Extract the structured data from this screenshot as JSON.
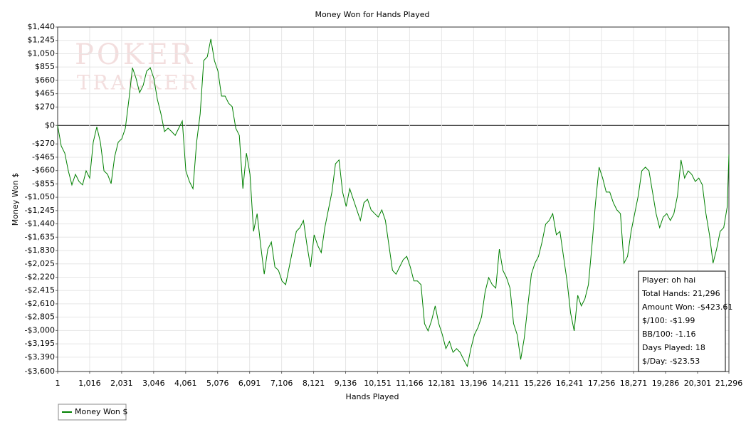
{
  "chart_data": {
    "type": "line",
    "title": "Money Won for Hands Played",
    "xlabel": "Hands Played",
    "ylabel": "Money Won $",
    "watermark": [
      "POKER",
      "TRACKER"
    ],
    "annotations": [
      "Player: oh hai",
      "Total Hands: 21,296",
      "Amount Won: -$423.61",
      "$/100: -$1.99",
      "BB/100: -1.16",
      "Days Played: 18",
      "$/Day: -$23.53"
    ],
    "grid": true,
    "zero_line": true,
    "legend": "bottom-left",
    "xlim": [
      1,
      21296
    ],
    "ylim": [
      -3600,
      1440
    ],
    "xticks": [
      1,
      {
        "value": 1016,
        "label": "1,016"
      },
      {
        "value": 2031,
        "label": "2,031"
      },
      {
        "value": 3046,
        "label": "3,046"
      },
      {
        "value": 4061,
        "label": "4,061"
      },
      {
        "value": 5076,
        "label": "5,076"
      },
      {
        "value": 6091,
        "label": "6,091"
      },
      {
        "value": 7106,
        "label": "7,106"
      },
      {
        "value": 8121,
        "label": "8,121"
      },
      {
        "value": 9136,
        "label": "9,136"
      },
      {
        "value": 10151,
        "label": "10,151"
      },
      {
        "value": 11166,
        "label": "11,166"
      },
      {
        "value": 12181,
        "label": "12,181"
      },
      {
        "value": 13196,
        "label": "13,196"
      },
      {
        "value": 14211,
        "label": "14,211"
      },
      {
        "value": 15226,
        "label": "15,226"
      },
      {
        "value": 16241,
        "label": "16,241"
      },
      {
        "value": 17256,
        "label": "17,256"
      },
      {
        "value": 18271,
        "label": "18,271"
      },
      {
        "value": 19286,
        "label": "19,286"
      },
      {
        "value": 20301,
        "label": "20,301"
      },
      {
        "value": 21296,
        "label": "21,296"
      }
    ],
    "yticks": [
      {
        "value": 1440,
        "label": "$1,440"
      },
      {
        "value": 1245,
        "label": "$1,245"
      },
      {
        "value": 1050,
        "label": "$1,050"
      },
      {
        "value": 855,
        "label": "$855"
      },
      {
        "value": 660,
        "label": "$660"
      },
      {
        "value": 465,
        "label": "$465"
      },
      {
        "value": 270,
        "label": "$270"
      },
      {
        "value": 0,
        "label": "$0"
      },
      {
        "value": -270,
        "label": "-$270"
      },
      {
        "value": -465,
        "label": "-$465"
      },
      {
        "value": -660,
        "label": "-$660"
      },
      {
        "value": -855,
        "label": "-$855"
      },
      {
        "value": -1050,
        "label": "-$1,050"
      },
      {
        "value": -1245,
        "label": "-$1,245"
      },
      {
        "value": -1440,
        "label": "-$1,440"
      },
      {
        "value": -1635,
        "label": "-$1,635"
      },
      {
        "value": -1830,
        "label": "-$1,830"
      },
      {
        "value": -2025,
        "label": "-$2,025"
      },
      {
        "value": -2220,
        "label": "-$2,220"
      },
      {
        "value": -2415,
        "label": "-$2,415"
      },
      {
        "value": -2610,
        "label": "-$2,610"
      },
      {
        "value": -2805,
        "label": "-$2,805"
      },
      {
        "value": -3000,
        "label": "-$3,000"
      },
      {
        "value": -3195,
        "label": "-$3,195"
      },
      {
        "value": -3390,
        "label": "-$3,390"
      },
      {
        "value": -3600,
        "label": "-$3,600"
      }
    ],
    "x": [
      1,
      114,
      227,
      340,
      453,
      566,
      679,
      792,
      905,
      1018,
      1131,
      1244,
      1357,
      1470,
      1583,
      1696,
      1809,
      1922,
      2035,
      2148,
      2261,
      2374,
      2487,
      2600,
      2713,
      2826,
      2939,
      3052,
      3165,
      3278,
      3391,
      3504,
      3617,
      3730,
      3843,
      3956,
      4069,
      4182,
      4295,
      4408,
      4521,
      4634,
      4747,
      4860,
      4973,
      5086,
      5199,
      5312,
      5425,
      5538,
      5651,
      5764,
      5877,
      5990,
      6103,
      6216,
      6329,
      6442,
      6555,
      6668,
      6781,
      6894,
      7007,
      7120,
      7233,
      7346,
      7459,
      7572,
      7685,
      7798,
      7911,
      8024,
      8137,
      8250,
      8363,
      8476,
      8589,
      8702,
      8815,
      8928,
      9041,
      9154,
      9267,
      9380,
      9493,
      9606,
      9719,
      9832,
      9945,
      10058,
      10171,
      10284,
      10397,
      10510,
      10623,
      10736,
      10849,
      10962,
      11075,
      11188,
      11301,
      11414,
      11527,
      11640,
      11753,
      11866,
      11979,
      12092,
      12205,
      12318,
      12431,
      12544,
      12657,
      12770,
      12883,
      12996,
      13109,
      13222,
      13335,
      13448,
      13561,
      13674,
      13787,
      13900,
      14013,
      14126,
      14239,
      14352,
      14465,
      14578,
      14691,
      14804,
      14917,
      15030,
      15143,
      15256,
      15369,
      15482,
      15595,
      15708,
      15821,
      15934,
      16047,
      16160,
      16273,
      16386,
      16499,
      16612,
      16725,
      16838,
      16951,
      17064,
      17177,
      17290,
      17403,
      17516,
      17629,
      17742,
      17855,
      17968,
      18081,
      18194,
      18307,
      18420,
      18533,
      18646,
      18759,
      18872,
      18985,
      19098,
      19211,
      19324,
      19437,
      19550,
      19663,
      19776,
      19889,
      20002,
      20115,
      20228,
      20341,
      20454,
      20567,
      20680,
      20793,
      20906,
      21019,
      21132,
      21245,
      21296
    ],
    "series": [
      {
        "name": "Money Won $",
        "color": "#008000",
        "values": [
          0,
          -300,
          -405,
          -665,
          -870,
          -715,
          -820,
          -870,
          -665,
          -770,
          -245,
          -20,
          -245,
          -665,
          -715,
          -850,
          -455,
          -245,
          -195,
          -40,
          380,
          845,
          690,
          480,
          585,
          795,
          845,
          690,
          380,
          170,
          -90,
          -40,
          -90,
          -145,
          -40,
          65,
          -665,
          -820,
          -925,
          -245,
          170,
          950,
          1005,
          1265,
          950,
          795,
          430,
          430,
          325,
          275,
          -40,
          -145,
          -925,
          -405,
          -715,
          -1550,
          -1290,
          -1755,
          -2175,
          -1810,
          -1705,
          -2070,
          -2120,
          -2275,
          -2330,
          -2070,
          -1810,
          -1550,
          -1495,
          -1390,
          -1755,
          -2070,
          -1600,
          -1755,
          -1860,
          -1495,
          -1235,
          -975,
          -560,
          -505,
          -975,
          -1185,
          -925,
          -1080,
          -1235,
          -1390,
          -1130,
          -1080,
          -1235,
          -1290,
          -1340,
          -1235,
          -1390,
          -1755,
          -2120,
          -2175,
          -2070,
          -1965,
          -1915,
          -2070,
          -2275,
          -2275,
          -2330,
          -2900,
          -3005,
          -2850,
          -2640,
          -2900,
          -3060,
          -3265,
          -3160,
          -3320,
          -3265,
          -3320,
          -3425,
          -3525,
          -3265,
          -3060,
          -2955,
          -2800,
          -2435,
          -2225,
          -2330,
          -2380,
          -1810,
          -2120,
          -2225,
          -2380,
          -2900,
          -3060,
          -3425,
          -3110,
          -2640,
          -2175,
          -2015,
          -1915,
          -1705,
          -1445,
          -1390,
          -1290,
          -1600,
          -1550,
          -1915,
          -2275,
          -2745,
          -3005,
          -2485,
          -2640,
          -2540,
          -2330,
          -1755,
          -1130,
          -610,
          -770,
          -975,
          -975,
          -1130,
          -1235,
          -1290,
          -2015,
          -1915,
          -1550,
          -1290,
          -1030,
          -665,
          -610,
          -665,
          -975,
          -1290,
          -1495,
          -1340,
          -1290,
          -1390,
          -1290,
          -1030,
          -505,
          -770,
          -665,
          -715,
          -820,
          -770,
          -870,
          -1290,
          -1600,
          -2015,
          -1810,
          -1550,
          -1495,
          -1185,
          -425
        ]
      }
    ]
  }
}
